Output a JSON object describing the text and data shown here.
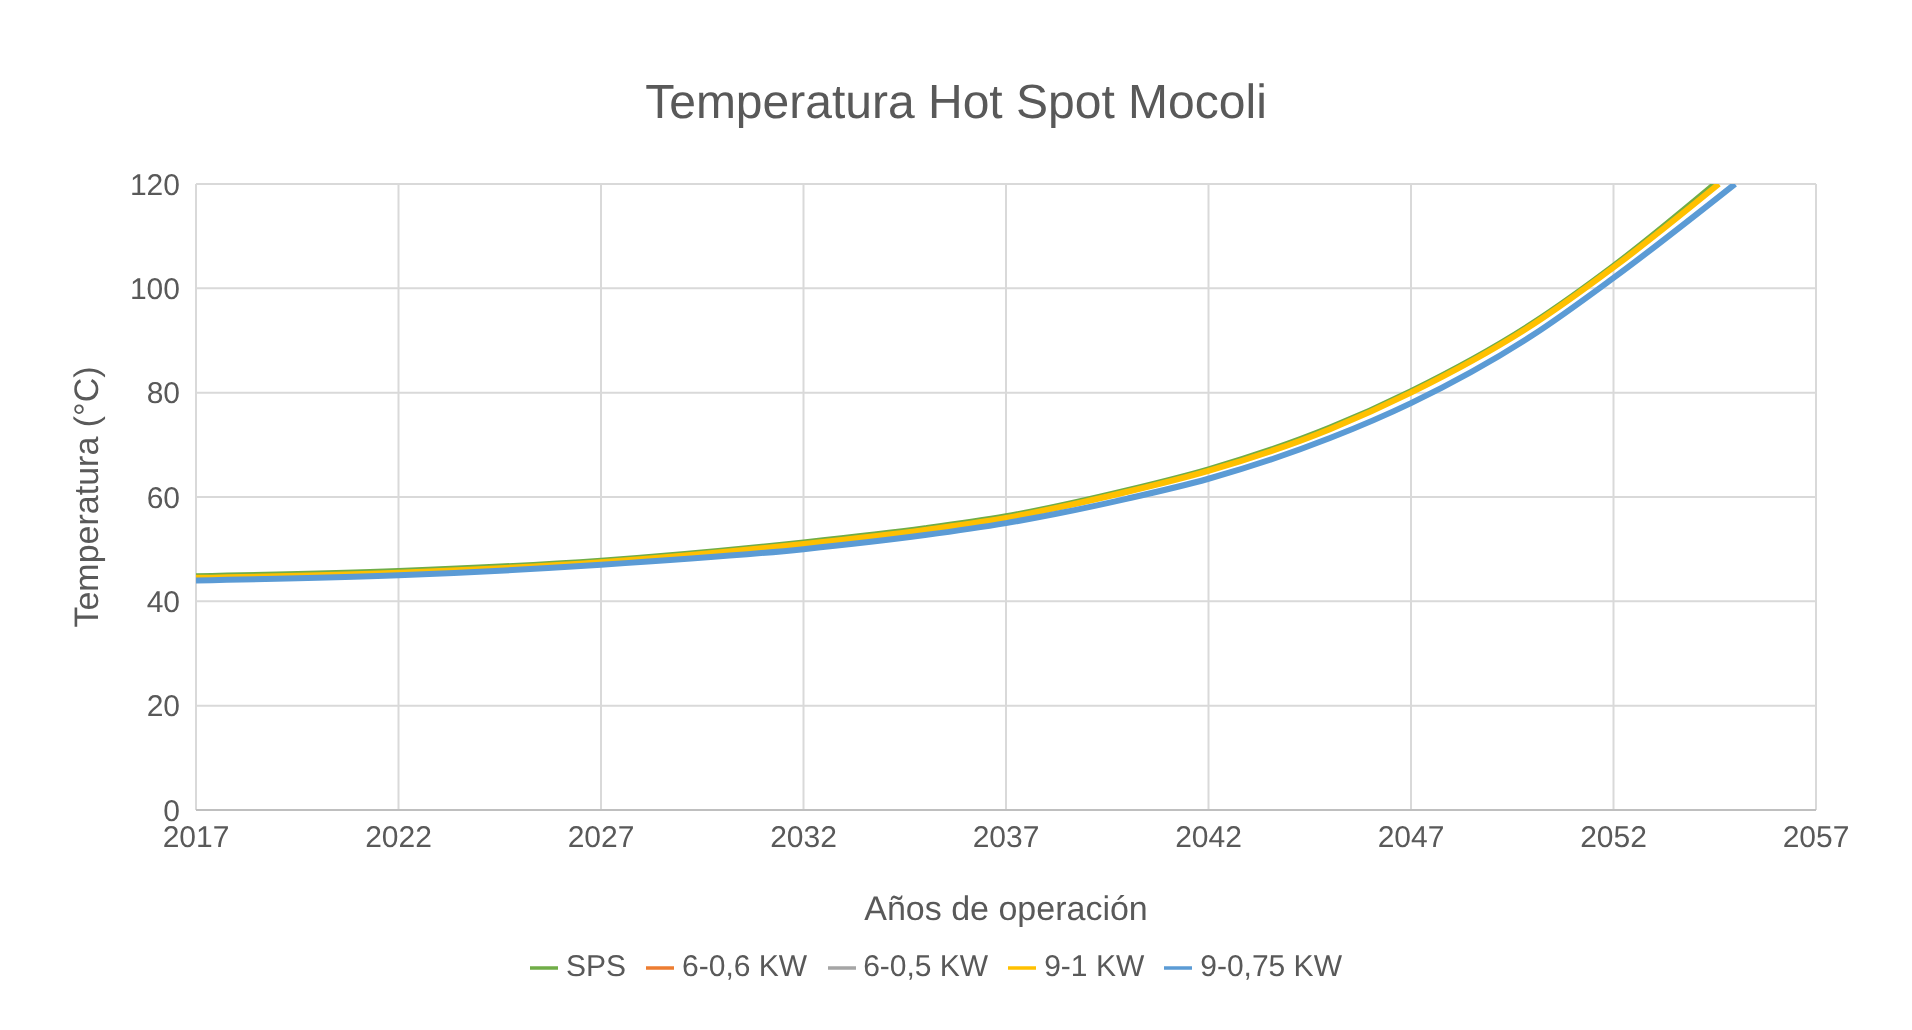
{
  "chart_data": {
    "type": "line",
    "title": "Temperatura  Hot Spot Mocoli",
    "xlabel": "Años de operación",
    "ylabel": "Temperatura (°C)",
    "xlim": [
      2017,
      2057
    ],
    "xticks": [
      2017,
      2022,
      2027,
      2032,
      2037,
      2042,
      2047,
      2052,
      2057
    ],
    "ylim": [
      0,
      120
    ],
    "yticks": [
      0,
      20,
      40,
      60,
      80,
      100,
      120
    ],
    "grid": true,
    "legend": "bottom",
    "marker": "none",
    "series": [
      {
        "name": "SPS",
        "color": "#70ad47",
        "x": [
          2017,
          2022,
          2027,
          2032,
          2035,
          2037,
          2040,
          2042,
          2045,
          2047,
          2050,
          2052,
          2054.5
        ],
        "values": [
          44.8,
          45.8,
          47.8,
          51.3,
          54,
          56.3,
          61.3,
          65.3,
          73.3,
          80.3,
          93.3,
          104.3,
          120
        ]
      },
      {
        "name": "6-0,6 KW",
        "color": "#ed7d31"
      },
      {
        "name": "6-0,5 KW",
        "color": "#a5a5a5"
      },
      {
        "name": "9-1 KW",
        "color": "#ffc000",
        "x": [
          2017,
          2022,
          2027,
          2032,
          2035,
          2037,
          2040,
          2042,
          2045,
          2047,
          2050,
          2052,
          2054.6
        ],
        "values": [
          44.5,
          45.5,
          47.5,
          51,
          53.7,
          56,
          61,
          65,
          73,
          80,
          93,
          104,
          120
        ]
      },
      {
        "name": "9-0,75 KW",
        "color": "#5b9bd5",
        "x": [
          2017,
          2022,
          2027,
          2032,
          2035,
          2037,
          2040,
          2042,
          2045,
          2047,
          2050,
          2052,
          2055
        ],
        "values": [
          44,
          45,
          47,
          50,
          52.7,
          55,
          59.7,
          63.5,
          71.3,
          78,
          91,
          102,
          120
        ]
      }
    ]
  }
}
